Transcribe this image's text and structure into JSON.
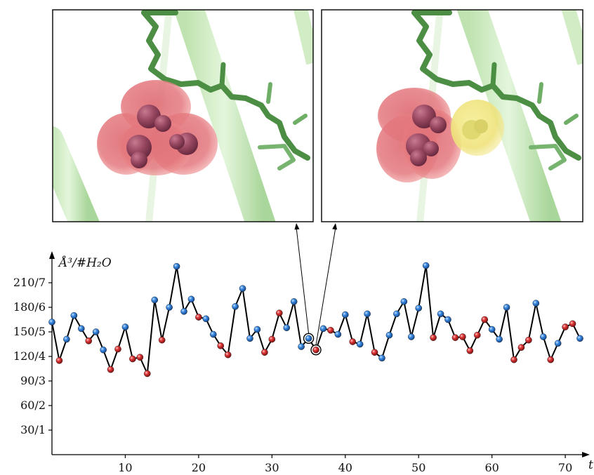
{
  "chart_data": {
    "type": "line",
    "ylabel": "Å³/#H₂O",
    "xlabel": "t",
    "xlim": [
      0,
      72
    ],
    "ylim": [
      0,
      240
    ],
    "xticks": [
      10,
      20,
      30,
      40,
      50,
      60,
      70
    ],
    "yticks": [
      {
        "value": 30,
        "label": "30/1"
      },
      {
        "value": 60,
        "label": "60/2"
      },
      {
        "value": 90,
        "label": "90/3"
      },
      {
        "value": 120,
        "label": "120/4"
      },
      {
        "value": 150,
        "label": "150/5"
      },
      {
        "value": 180,
        "label": "180/6"
      },
      {
        "value": 210,
        "label": "210/7"
      }
    ],
    "point_colors": {
      "blue": "#2a73c8",
      "red": "#c81e1e"
    },
    "highlighted_t": [
      35,
      36
    ],
    "points": [
      {
        "t": 0,
        "y": 162,
        "c": "blue"
      },
      {
        "t": 1,
        "y": 115,
        "c": "red"
      },
      {
        "t": 2,
        "y": 141,
        "c": "blue"
      },
      {
        "t": 3,
        "y": 170,
        "c": "blue"
      },
      {
        "t": 4,
        "y": 154,
        "c": "blue"
      },
      {
        "t": 5,
        "y": 139,
        "c": "red"
      },
      {
        "t": 6,
        "y": 150,
        "c": "blue"
      },
      {
        "t": 7,
        "y": 128,
        "c": "blue"
      },
      {
        "t": 8,
        "y": 104,
        "c": "red"
      },
      {
        "t": 9,
        "y": 129,
        "c": "red"
      },
      {
        "t": 10,
        "y": 156,
        "c": "blue"
      },
      {
        "t": 11,
        "y": 117,
        "c": "red"
      },
      {
        "t": 12,
        "y": 119,
        "c": "red"
      },
      {
        "t": 13,
        "y": 99,
        "c": "red"
      },
      {
        "t": 14,
        "y": 189,
        "c": "blue"
      },
      {
        "t": 15,
        "y": 140,
        "c": "red"
      },
      {
        "t": 16,
        "y": 180,
        "c": "blue"
      },
      {
        "t": 17,
        "y": 230,
        "c": "blue"
      },
      {
        "t": 18,
        "y": 175,
        "c": "blue"
      },
      {
        "t": 19,
        "y": 190,
        "c": "blue"
      },
      {
        "t": 20,
        "y": 168,
        "c": "red"
      },
      {
        "t": 21,
        "y": 166,
        "c": "blue"
      },
      {
        "t": 22,
        "y": 147,
        "c": "blue"
      },
      {
        "t": 23,
        "y": 133,
        "c": "red"
      },
      {
        "t": 24,
        "y": 122,
        "c": "red"
      },
      {
        "t": 25,
        "y": 181,
        "c": "blue"
      },
      {
        "t": 26,
        "y": 203,
        "c": "blue"
      },
      {
        "t": 27,
        "y": 142,
        "c": "blue"
      },
      {
        "t": 28,
        "y": 153,
        "c": "blue"
      },
      {
        "t": 29,
        "y": 125,
        "c": "red"
      },
      {
        "t": 30,
        "y": 141,
        "c": "red"
      },
      {
        "t": 31,
        "y": 173,
        "c": "red"
      },
      {
        "t": 32,
        "y": 155,
        "c": "blue"
      },
      {
        "t": 33,
        "y": 187,
        "c": "blue"
      },
      {
        "t": 34,
        "y": 132,
        "c": "blue"
      },
      {
        "t": 35,
        "y": 142,
        "c": "blue"
      },
      {
        "t": 36,
        "y": 128,
        "c": "red"
      },
      {
        "t": 37,
        "y": 154,
        "c": "blue"
      },
      {
        "t": 38,
        "y": 152,
        "c": "red"
      },
      {
        "t": 39,
        "y": 147,
        "c": "blue"
      },
      {
        "t": 40,
        "y": 171,
        "c": "blue"
      },
      {
        "t": 41,
        "y": 138,
        "c": "red"
      },
      {
        "t": 42,
        "y": 135,
        "c": "blue"
      },
      {
        "t": 43,
        "y": 172,
        "c": "blue"
      },
      {
        "t": 44,
        "y": 125,
        "c": "red"
      },
      {
        "t": 45,
        "y": 118,
        "c": "blue"
      },
      {
        "t": 46,
        "y": 146,
        "c": "blue"
      },
      {
        "t": 47,
        "y": 172,
        "c": "blue"
      },
      {
        "t": 48,
        "y": 187,
        "c": "blue"
      },
      {
        "t": 49,
        "y": 144,
        "c": "blue"
      },
      {
        "t": 50,
        "y": 179,
        "c": "blue"
      },
      {
        "t": 51,
        "y": 231,
        "c": "blue"
      },
      {
        "t": 52,
        "y": 143,
        "c": "red"
      },
      {
        "t": 53,
        "y": 172,
        "c": "blue"
      },
      {
        "t": 54,
        "y": 165,
        "c": "blue"
      },
      {
        "t": 55,
        "y": 143,
        "c": "red"
      },
      {
        "t": 56,
        "y": 144,
        "c": "red"
      },
      {
        "t": 57,
        "y": 127,
        "c": "red"
      },
      {
        "t": 58,
        "y": 146,
        "c": "red"
      },
      {
        "t": 59,
        "y": 165,
        "c": "red"
      },
      {
        "t": 60,
        "y": 153,
        "c": "blue"
      },
      {
        "t": 61,
        "y": 141,
        "c": "blue"
      },
      {
        "t": 62,
        "y": 180,
        "c": "blue"
      },
      {
        "t": 63,
        "y": 116,
        "c": "red"
      },
      {
        "t": 64,
        "y": 131,
        "c": "red"
      },
      {
        "t": 65,
        "y": 140,
        "c": "red"
      },
      {
        "t": 66,
        "y": 185,
        "c": "blue"
      },
      {
        "t": 67,
        "y": 144,
        "c": "blue"
      },
      {
        "t": 68,
        "y": 116,
        "c": "red"
      },
      {
        "t": 69,
        "y": 136,
        "c": "blue"
      },
      {
        "t": 70,
        "y": 156,
        "c": "red"
      },
      {
        "t": 71,
        "y": 160,
        "c": "red"
      },
      {
        "t": 72,
        "y": 142,
        "c": "blue"
      }
    ]
  }
}
